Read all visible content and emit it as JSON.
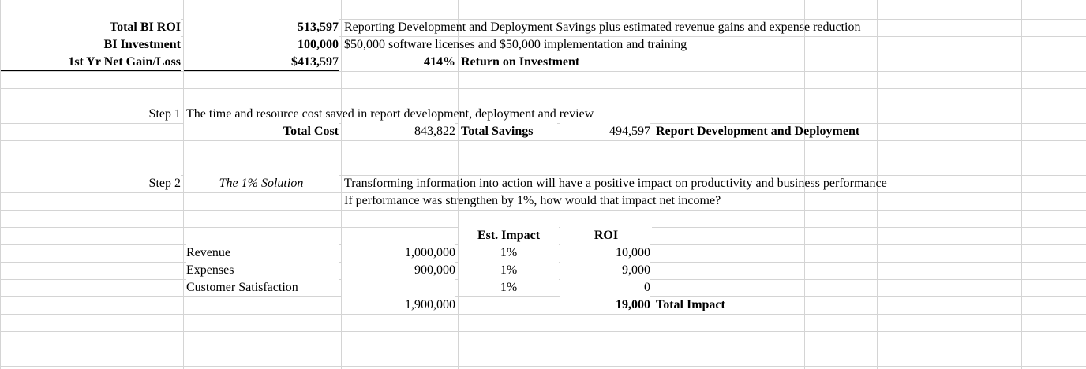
{
  "summary": {
    "total_bi_roi": {
      "label": "Total BI ROI",
      "value": "513,597",
      "note": "Reporting Development and Deployment Savings plus estimated revenue gains and expense reduction"
    },
    "bi_investment": {
      "label": "BI Investment",
      "value": "100,000",
      "note": "$50,000 software licenses and $50,000 implementation and training"
    },
    "net_gain": {
      "label": "1st Yr Net Gain/Loss",
      "value": "$413,597",
      "pct": "414%",
      "note": "Return on Investment"
    }
  },
  "step1": {
    "label": "Step 1",
    "description": "The time and resource cost saved in report development, deployment and review",
    "total_cost_label": "Total Cost",
    "total_cost_value": "843,822",
    "total_savings_label": "Total Savings",
    "total_savings_value": "494,597",
    "result_label": "Report Development and Deployment"
  },
  "step2": {
    "label": "Step 2",
    "title": "The 1% Solution",
    "line1": "Transforming information into action will have a positive impact on productivity and business performance",
    "line2": "If performance was strengthen by 1%, how would that impact net income?",
    "headers": {
      "impact": "Est. Impact",
      "roi": "ROI"
    },
    "rows": [
      {
        "name": "Revenue",
        "amount": "1,000,000",
        "impact": "1%",
        "roi": "10,000"
      },
      {
        "name": "Expenses",
        "amount": "900,000",
        "impact": "1%",
        "roi": "9,000"
      },
      {
        "name": "Customer Satisfaction",
        "amount": "",
        "impact": "1%",
        "roi": "0"
      }
    ],
    "total_amount": "1,900,000",
    "total_roi": "19,000",
    "total_label": "Total Impact"
  },
  "colors": {
    "gridline": "#d4d4d4",
    "text": "#000000"
  }
}
